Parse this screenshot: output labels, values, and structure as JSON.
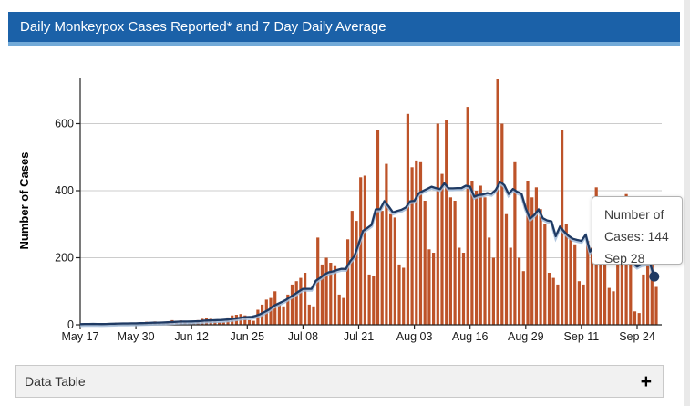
{
  "header": {
    "title": "Daily Monkeypox Cases Reported* and 7 Day Daily Average"
  },
  "tooltip": {
    "lines": [
      "Number of",
      "Cases: 144",
      "Sep 28"
    ],
    "value": 144,
    "date": "Sep 28"
  },
  "data_table": {
    "label": "Data Table",
    "expand_icon": "+"
  },
  "colors": {
    "header_bg": "#1b61a8",
    "header_edge": "#72aad8",
    "bar": "#bd5329",
    "line": "#1f3a63",
    "line_halo": "#a3bcd9",
    "grid": "#cccccc",
    "panel_bg": "#f1f1f1"
  },
  "chart_data": {
    "type": "bar",
    "title": "Daily Monkeypox Cases Reported* and 7 Day Daily Average",
    "xlabel": "",
    "ylabel": "Number of Cases",
    "ylim": [
      0,
      740
    ],
    "y_ticks": [
      0,
      200,
      400,
      600
    ],
    "grid": "horizontal",
    "legend": "none",
    "start_date": "May 17",
    "end_date": "Sep 28",
    "x_ticks": [
      {
        "label": "May 17",
        "day": 0
      },
      {
        "label": "May 30",
        "day": 13
      },
      {
        "label": "Jun 12",
        "day": 26
      },
      {
        "label": "Jun 25",
        "day": 39
      },
      {
        "label": "Jul 08",
        "day": 52
      },
      {
        "label": "Jul 21",
        "day": 65
      },
      {
        "label": "Aug 03",
        "day": 78
      },
      {
        "label": "Aug 16",
        "day": 91
      },
      {
        "label": "Aug 29",
        "day": 104
      },
      {
        "label": "Sep 11",
        "day": 117
      },
      {
        "label": "Sep 24",
        "day": 130
      }
    ],
    "series": [
      {
        "name": "Daily Cases Reported",
        "type": "bar",
        "color": "#bd5329",
        "values": [
          2,
          3,
          2,
          4,
          1,
          1,
          4,
          5,
          6,
          5,
          6,
          2,
          2,
          5,
          8,
          9,
          8,
          10,
          4,
          3,
          10,
          14,
          12,
          13,
          12,
          5,
          5,
          14,
          18,
          20,
          18,
          16,
          8,
          7,
          22,
          28,
          30,
          32,
          28,
          14,
          12,
          45,
          60,
          75,
          80,
          100,
          60,
          55,
          90,
          120,
          130,
          140,
          155,
          60,
          55,
          260,
          180,
          200,
          185,
          175,
          90,
          80,
          255,
          340,
          310,
          440,
          445,
          150,
          145,
          582,
          340,
          480,
          330,
          320,
          180,
          170,
          629,
          470,
          490,
          485,
          370,
          225,
          215,
          600,
          450,
          610,
          380,
          370,
          230,
          215,
          650,
          430,
          400,
          415,
          380,
          260,
          200,
          732,
          600,
          330,
          230,
          485,
          200,
          160,
          430,
          380,
          410,
          345,
          300,
          155,
          140,
          120,
          582,
          300,
          260,
          240,
          130,
          120,
          250,
          230,
          410,
          180,
          180,
          110,
          100,
          180,
          180,
          390,
          290,
          40,
          35,
          150,
          195,
          185,
          113
        ]
      },
      {
        "name": "7 Day Daily Average",
        "type": "line",
        "color": "#1f3a63",
        "derived": "7-day trailing mean of Daily Cases Reported",
        "end_value": 144,
        "end_date": "Sep 28"
      }
    ]
  }
}
